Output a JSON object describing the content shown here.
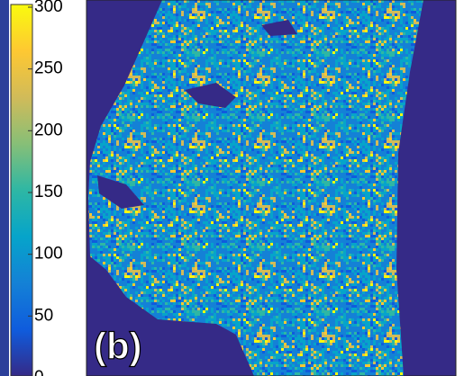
{
  "chart_data": {
    "type": "heatmap",
    "label": "(b)",
    "clim": [
      0,
      300
    ],
    "colorbar_ticks": [
      0,
      50,
      100,
      150,
      200,
      250,
      300
    ],
    "colormap": [
      "#352a87",
      "#0f5cdd",
      "#1481d6",
      "#06a4ca",
      "#2eb7a4",
      "#87bf77",
      "#d1bb59",
      "#fec832",
      "#f9fb0e"
    ]
  }
}
